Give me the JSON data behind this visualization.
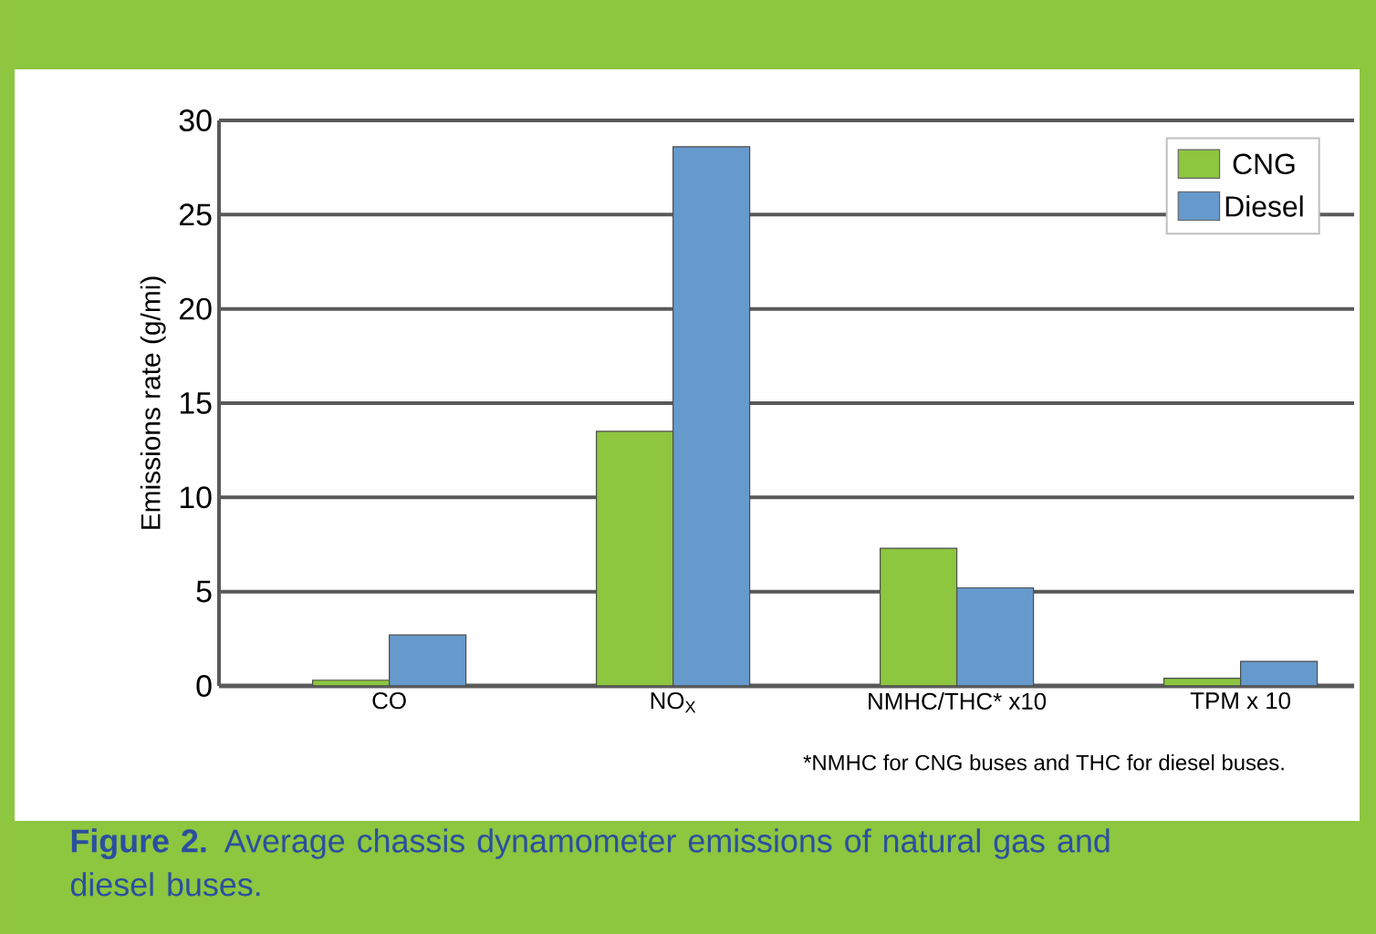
{
  "chart_data": {
    "type": "bar",
    "ylabel": "Emissions rate (g/mi)",
    "categories": [
      "CO",
      "NO$_{X}$",
      "NMHC/THC* x10",
      "TPM x 10"
    ],
    "series": [
      {
        "name": "CNG",
        "color": "#8dc63f",
        "values": [
          0.3,
          13.5,
          7.3,
          0.4
        ]
      },
      {
        "name": "Diesel",
        "color": "#6699cc",
        "values": [
          2.7,
          28.6,
          5.2,
          1.3
        ]
      }
    ],
    "ylim": [
      0,
      30
    ],
    "yticks": [
      0,
      5,
      10,
      15,
      20,
      25,
      30
    ],
    "grid": "y",
    "legend": "top right",
    "annotations": [
      "*NMHC for CNG buses and THC for diesel buses.",
      "**Figure 2.** Average chassis dynamometer emissions of natural gas and diesel buses."
    ]
  }
}
